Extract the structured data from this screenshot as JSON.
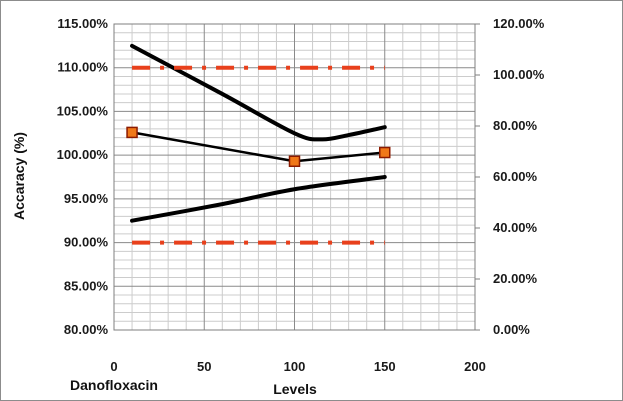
{
  "chart_data": {
    "type": "line",
    "title": "",
    "annotation": "Danofloxacin",
    "xlabel": "Levels",
    "ylabel": "Accaracy (%)",
    "xlim": [
      0,
      200
    ],
    "ylim": [
      80,
      115
    ],
    "y2lim": [
      0,
      120
    ],
    "x_ticks": [
      "0",
      "50",
      "100",
      "150",
      "200"
    ],
    "y_ticks": [
      "80.00%",
      "85.00%",
      "90.00%",
      "95.00%",
      "100.00%",
      "105.00%",
      "110.00%",
      "115.00%"
    ],
    "y2_ticks": [
      "0.00%",
      "20.00%",
      "40.00%",
      "60.00%",
      "80.00%",
      "100.00%",
      "120.00%"
    ],
    "grid": true,
    "legend": "none",
    "colors": {
      "series": "#000000",
      "limit": "#e8401c",
      "marker_fill": "#f07818",
      "marker_edge": "#8b1a00"
    },
    "series": [
      {
        "axis": "left",
        "style": "line-markers",
        "smooth": false,
        "x": [
          10,
          100,
          150
        ],
        "y": [
          102.6,
          99.3,
          100.3
        ]
      },
      {
        "axis": "left",
        "style": "thick-line",
        "smooth": true,
        "x": [
          10,
          60,
          100,
          115,
          130,
          150
        ],
        "y": [
          112.5,
          107.0,
          102.5,
          101.8,
          102.3,
          103.2
        ]
      },
      {
        "axis": "left",
        "style": "thick-line",
        "smooth": true,
        "x": [
          10,
          60,
          100,
          150
        ],
        "y": [
          92.5,
          94.4,
          96.1,
          97.5
        ]
      },
      {
        "axis": "left",
        "style": "dash-dot-limit",
        "smooth": false,
        "x": [
          10,
          150
        ],
        "y": [
          110,
          110
        ]
      },
      {
        "axis": "left",
        "style": "dash-dot-limit",
        "smooth": false,
        "x": [
          10,
          150
        ],
        "y": [
          90,
          90
        ]
      }
    ]
  }
}
